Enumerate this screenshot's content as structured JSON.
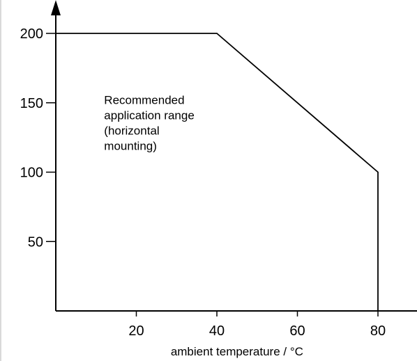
{
  "chart_data": {
    "type": "line",
    "title": "",
    "xlabel": "ambient temperature / °C",
    "ylabel": "",
    "xlim": [
      0,
      95
    ],
    "ylim": [
      0,
      220
    ],
    "x_ticks": [
      20,
      40,
      60,
      80
    ],
    "y_ticks": [
      50,
      100,
      150,
      200
    ],
    "grid": false,
    "legend": "none",
    "series": [
      {
        "x": [
          0,
          40,
          80,
          80
        ],
        "y": [
          200,
          200,
          100,
          0
        ]
      }
    ],
    "annotations": [
      {
        "lines": [
          "Recommended",
          "application range",
          "(horizontal",
          "mounting)"
        ],
        "x": 12,
        "y": 120
      }
    ],
    "colors": {
      "line": "#000000",
      "axis": "#000000",
      "frame": "#d9d9d9"
    }
  }
}
